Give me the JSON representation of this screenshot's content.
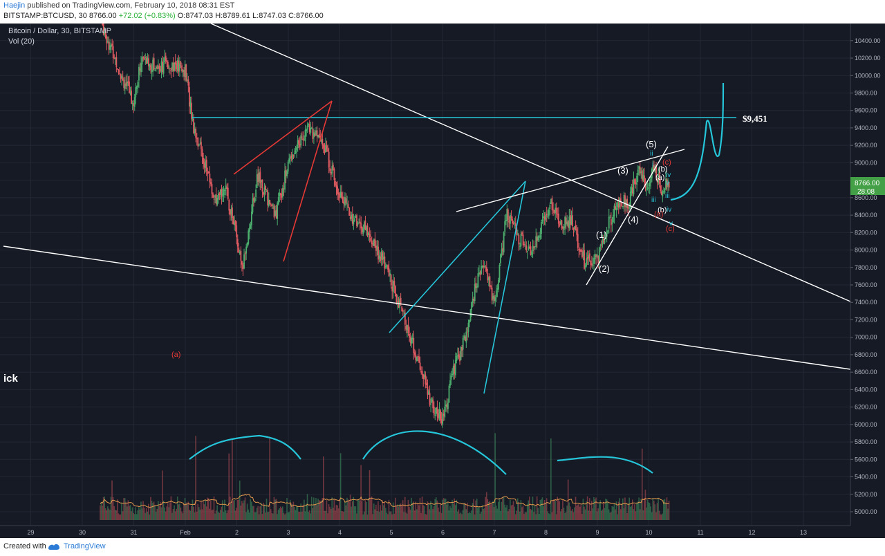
{
  "header": {
    "author": "Haejin",
    "published_text": "published on TradingView.com, February 10, 2018 08:31 EST",
    "symbol": "BITSTAMP:BTCUSD, 30",
    "last": "8766.00",
    "change": "+72.02 (+0.83%)",
    "ohlc": [
      {
        "label": "O:",
        "value": "8747.03"
      },
      {
        "label": "H:",
        "value": "8789.61"
      },
      {
        "label": "L:",
        "value": "8747.03"
      },
      {
        "label": "C:",
        "value": "8766.00"
      }
    ]
  },
  "footer": {
    "created_with": "Created with",
    "brand": "TradingView"
  },
  "colors": {
    "background": "#161a25",
    "up": "#4caf6e",
    "down": "#e05b61",
    "cyan": "#26c6da",
    "white": "#ffffff",
    "red": "#e53935",
    "axis_text": "#b2b5be"
  },
  "chart_data": {
    "type": "candlestick",
    "title": "Bitcoin / Dollar, 30, BITSTAMP",
    "volume_label": "Vol (20)",
    "y_axis": {
      "range": [
        4700,
        10700
      ],
      "ticks": [
        5000,
        5200,
        5400,
        5600,
        5800,
        6000,
        6200,
        6400,
        6600,
        6800,
        7000,
        7200,
        7400,
        7600,
        7800,
        8000,
        8200,
        8400,
        8600,
        8800,
        9000,
        9200,
        9400,
        9600,
        9800,
        10000,
        10200,
        10400
      ],
      "price_label": "8766.00",
      "countdown": "28:08"
    },
    "x_axis": {
      "ticks": [
        {
          "label": "29",
          "t": -3
        },
        {
          "label": "30",
          "t": -2
        },
        {
          "label": "31",
          "t": -1
        },
        {
          "label": "Feb",
          "t": 0
        },
        {
          "label": "2",
          "t": 1
        },
        {
          "label": "3",
          "t": 2
        },
        {
          "label": "4",
          "t": 3
        },
        {
          "label": "5",
          "t": 4
        },
        {
          "label": "6",
          "t": 5
        },
        {
          "label": "7",
          "t": 6
        },
        {
          "label": "8",
          "t": 7
        },
        {
          "label": "9",
          "t": 8
        },
        {
          "label": "10",
          "t": 9
        },
        {
          "label": "11",
          "t": 10
        },
        {
          "label": "12",
          "t": 11
        },
        {
          "label": "13",
          "t": 12
        }
      ]
    },
    "price_path": [
      [
        -1.65,
        10650
      ],
      [
        -1.5,
        10400
      ],
      [
        -1.2,
        9950
      ],
      [
        -1.0,
        9700
      ],
      [
        -0.85,
        10200
      ],
      [
        -0.6,
        10100
      ],
      [
        -0.3,
        10150
      ],
      [
        0.0,
        10050
      ],
      [
        0.15,
        9450
      ],
      [
        0.4,
        8950
      ],
      [
        0.6,
        8500
      ],
      [
        0.75,
        8750
      ],
      [
        0.95,
        8300
      ],
      [
        1.1,
        7750
      ],
      [
        1.4,
        8850
      ],
      [
        1.75,
        8400
      ],
      [
        2.05,
        9100
      ],
      [
        2.4,
        9400
      ],
      [
        2.7,
        9200
      ],
      [
        2.9,
        8800
      ],
      [
        3.2,
        8400
      ],
      [
        3.55,
        8200
      ],
      [
        3.9,
        7800
      ],
      [
        4.2,
        7300
      ],
      [
        4.5,
        6750
      ],
      [
        4.8,
        6200
      ],
      [
        5.0,
        6050
      ],
      [
        5.2,
        6600
      ],
      [
        5.45,
        7000
      ],
      [
        5.6,
        7500
      ],
      [
        5.8,
        7900
      ],
      [
        6.0,
        7350
      ],
      [
        6.25,
        8450
      ],
      [
        6.45,
        8150
      ],
      [
        6.7,
        8000
      ],
      [
        6.9,
        8250
      ],
      [
        7.1,
        8550
      ],
      [
        7.3,
        8300
      ],
      [
        7.5,
        8350
      ],
      [
        7.75,
        7850
      ],
      [
        8.0,
        7900
      ],
      [
        8.2,
        8300
      ],
      [
        8.45,
        8550
      ],
      [
        8.6,
        8550
      ],
      [
        8.8,
        8900
      ],
      [
        9.0,
        8750
      ],
      [
        9.1,
        8950
      ],
      [
        9.25,
        8700
      ],
      [
        9.4,
        8800
      ]
    ],
    "volume": {
      "baseline_level": 0.22,
      "peak": 0.95
    },
    "annotations": {
      "price_level": "$9,451",
      "labels": [
        "(a)",
        "(1)",
        "(2)",
        "(3)",
        "(4)",
        "(5)",
        "ii",
        "i",
        "iii",
        "iv",
        "v",
        "(a)",
        "(b)",
        "(c)",
        "(b)",
        "(a)",
        "(c)",
        "iii",
        "iv",
        "v",
        "ick"
      ]
    }
  }
}
